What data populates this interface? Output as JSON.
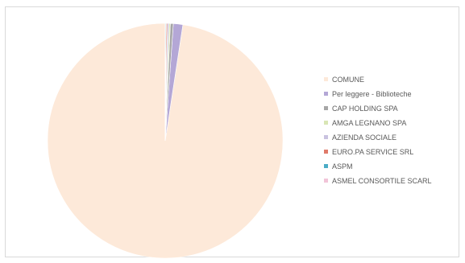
{
  "chart_data": {
    "type": "pie",
    "title": "",
    "legend_position": "right",
    "slices": [
      {
        "label": "COMUNE",
        "value": 97.6,
        "color": "#fde9d9"
      },
      {
        "label": "Per leggere - Biblioteche",
        "value": 1.3,
        "color": "#b4a7d6"
      },
      {
        "label": "CAP HOLDING SPA",
        "value": 0.4,
        "color": "#a6a6a6"
      },
      {
        "label": "AMGA LEGNANO SPA",
        "value": 0.2,
        "color": "#d9e6b5"
      },
      {
        "label": "AZIENDA SOCIALE",
        "value": 0.2,
        "color": "#c9c2e0"
      },
      {
        "label": "EURO.PA SERVICE SRL",
        "value": 0.15,
        "color": "#e07a6a"
      },
      {
        "label": "ASPM",
        "value": 0.1,
        "color": "#4bacc6"
      },
      {
        "label": "ASMEL CONSORTILE SCARL",
        "value": 0.05,
        "color": "#f2c4d8"
      }
    ]
  }
}
